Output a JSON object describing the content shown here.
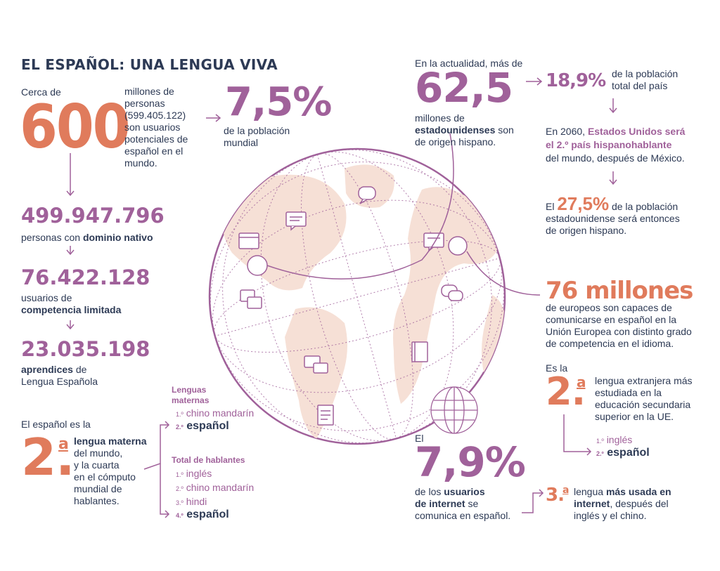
{
  "title": "EL ESPAÑOL: UNA LENGUA VIVA",
  "left": {
    "cerca": "Cerca de",
    "big": "600",
    "desc": [
      "millones de",
      "personas",
      "(599.405.122)",
      "son usuarios",
      "potenciales de",
      "español en el",
      "mundo."
    ],
    "pct": "7,5%",
    "pct_desc": [
      "de la población",
      "mundial"
    ],
    "stats": [
      {
        "value": "499.947.796",
        "pre": "personas con ",
        "bold": "dominio nativo",
        "post": ""
      },
      {
        "value": "76.422.128",
        "pre": "usuarios de",
        "bold": "competencia limitada",
        "post": ""
      },
      {
        "value": "23.035.198",
        "pre": "",
        "bold": "aprendices",
        "post": " de",
        "line2": "Lengua Española"
      }
    ]
  },
  "second": {
    "intro": "El español es la",
    "rank": "2.",
    "sup": "a",
    "bold": "lengua materna",
    "rest": [
      "del mundo,",
      "y la cuarta",
      "en el cómputo",
      "mundial de",
      "hablantes."
    ]
  },
  "lists": {
    "maternas_title": [
      "Lenguas",
      "maternas"
    ],
    "maternas": [
      {
        "ord": "1.º",
        "name": "chino mandarín",
        "bold": false
      },
      {
        "ord": "2.º",
        "name": "español",
        "bold": true
      }
    ],
    "total_title": "Total de hablantes",
    "total": [
      {
        "ord": "1.º",
        "name": "inglés",
        "bold": false
      },
      {
        "ord": "2.º",
        "name": "chino mandarín",
        "bold": false
      },
      {
        "ord": "3.º",
        "name": "hindi",
        "bold": false
      },
      {
        "ord": "4.º",
        "name": "español",
        "bold": true
      }
    ]
  },
  "usa": {
    "intro": "En la actualidad, más de",
    "big": "62,5",
    "desc1": "millones de",
    "desc_bold": "estadounidenses",
    "desc2": " son",
    "desc3": "de origen hispano.",
    "pct": "18,9%",
    "pct_desc": [
      "de la población",
      "total del país"
    ],
    "future1": "En 2060, ",
    "future_hl": [
      "Estados Unidos será",
      "el 2.º país hispanohablante"
    ],
    "future2": "del mundo, después de México.",
    "el": "El ",
    "pct2": "27,5%",
    "pct2_desc": [
      " de la población",
      "estadounidense será entonces",
      "de origen hispano."
    ]
  },
  "europe": {
    "big": "76 millones",
    "desc": [
      "de europeos son capaces de",
      "comunicarse en español en la",
      "Unión Europea con distinto grado",
      "de competencia en el idioma."
    ]
  },
  "eu_rank": {
    "intro": "Es la",
    "rank": "2.",
    "sup": "a",
    "desc": [
      "lengua extranjera más",
      "estudiada en la",
      "educación secundaria",
      "superior en la UE."
    ],
    "list": [
      {
        "ord": "1.º",
        "name": "inglés",
        "bold": false
      },
      {
        "ord": "2.º",
        "name": "español",
        "bold": true
      }
    ]
  },
  "internet": {
    "intro": "El",
    "big": "7,9%",
    "pre": "de los ",
    "bold": "usuarios",
    "line2_bold": "de internet",
    "line2": " se",
    "line3": "comunica en español.",
    "rank": "3.",
    "sup": "a",
    "r_pre": "lengua ",
    "r_bold": "más usada en",
    "r_bold2": "internet",
    "r_post": ", después del",
    "r_line3": "inglés y el chino."
  },
  "colors": {
    "navy": "#2d3a55",
    "mauve": "#a0619a",
    "orange": "#e07b5c",
    "land": "#f6e0d6"
  },
  "icons": [
    "speech-bubble-icon",
    "browser-window-icon",
    "chat-bubbles-icon",
    "book-icon",
    "document-icon",
    "globe-icon",
    "arrow-icon"
  ]
}
